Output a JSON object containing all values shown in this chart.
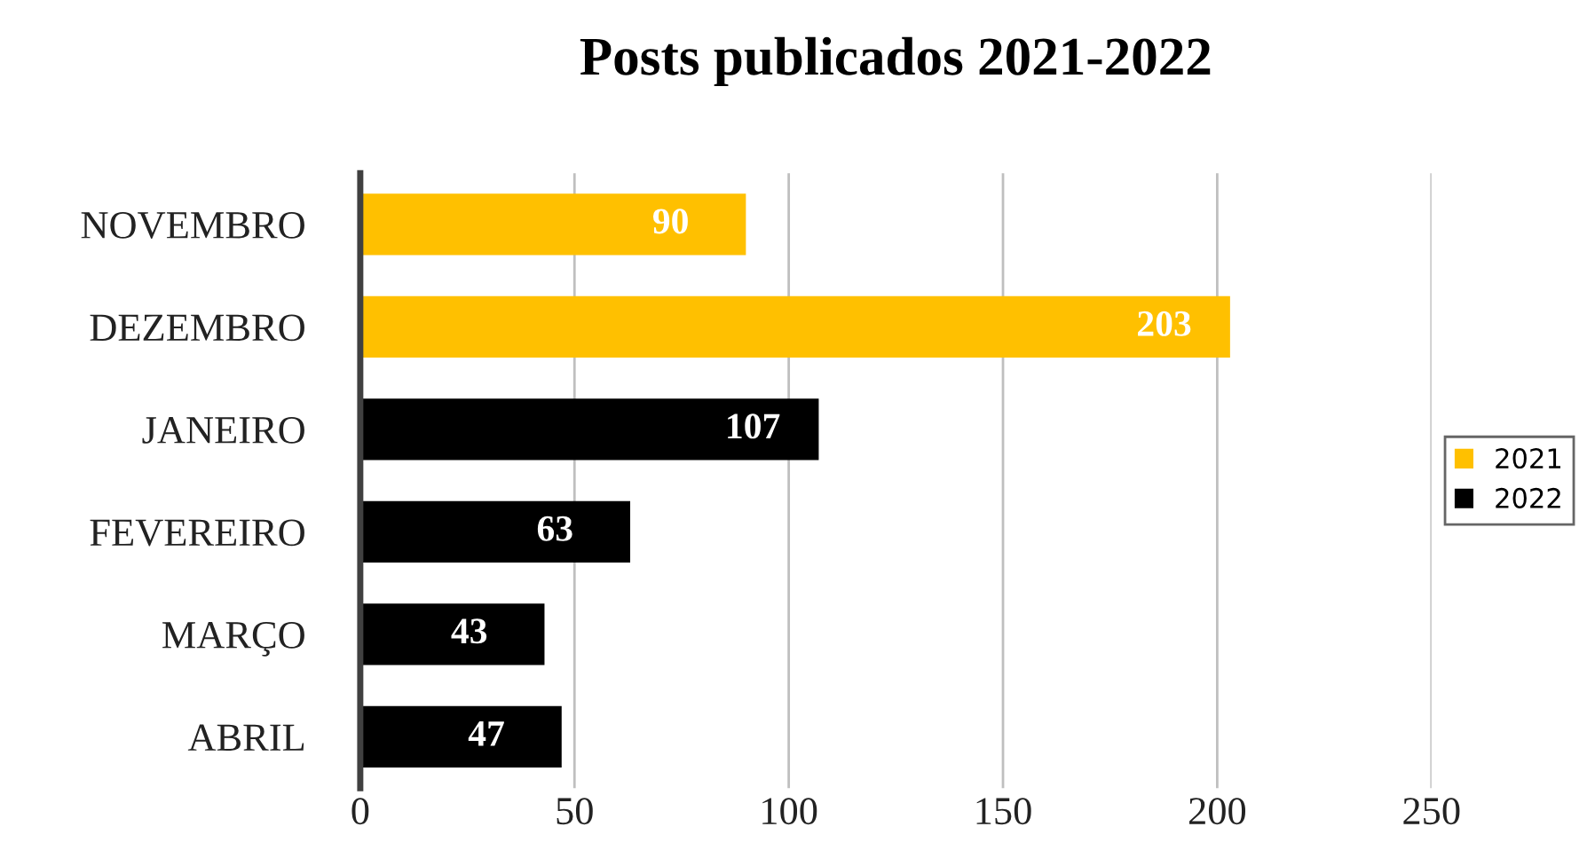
{
  "chart_data": {
    "type": "bar",
    "orientation": "horizontal",
    "title": "Posts publicados 2021-2022",
    "categories": [
      "NOVEMBRO",
      "DEZEMBRO",
      "JANEIRO",
      "FEVEREIRO",
      "MARÇO",
      "ABRIL"
    ],
    "series": [
      {
        "name": "2021",
        "color": "#ffc000",
        "values": [
          90,
          203,
          null,
          null,
          null,
          null
        ]
      },
      {
        "name": "2022",
        "color": "#000000",
        "values": [
          null,
          null,
          107,
          63,
          43,
          47
        ]
      }
    ],
    "xlim": [
      0,
      250
    ],
    "xticks": [
      0,
      50,
      100,
      150,
      200,
      250
    ],
    "grid": "x",
    "legend": "right",
    "data_labels": true
  }
}
